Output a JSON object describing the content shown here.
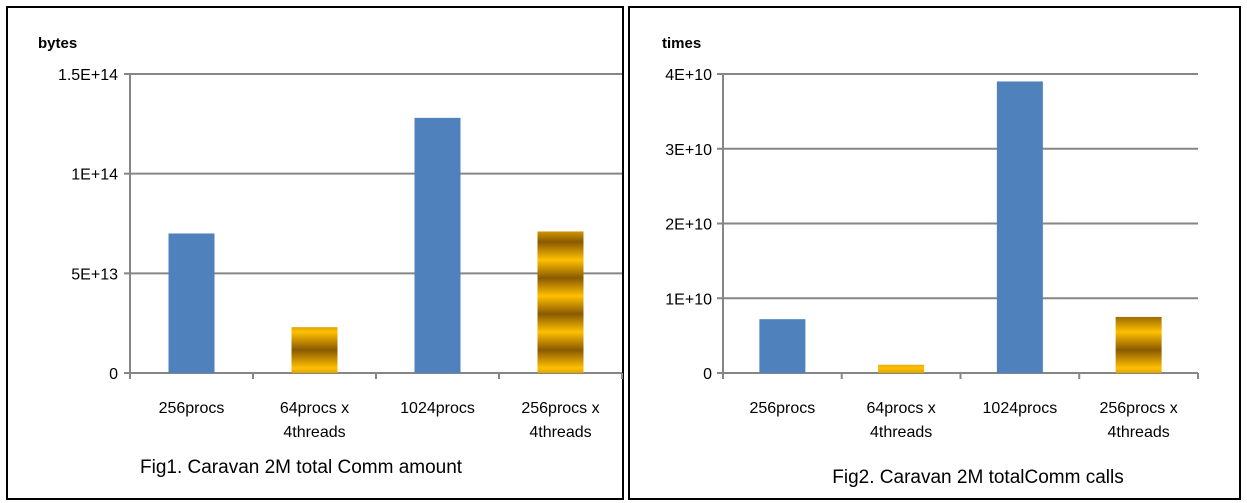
{
  "chart_data": [
    {
      "type": "bar",
      "caption": "Fig1. Caravan 2M total Comm amount",
      "ylabel": "bytes",
      "categories": [
        [
          "256procs"
        ],
        [
          "64procs x",
          "4threads"
        ],
        [
          "1024procs"
        ],
        [
          "256procs x",
          "4threads"
        ]
      ],
      "values": [
        70000000000000,
        23000000000000,
        128000000000000,
        71000000000000
      ],
      "bar_styles": [
        "blue",
        "gold",
        "blue",
        "gold"
      ],
      "yticks": [
        "0",
        "5E+13",
        "1E+14",
        "1.5E+14"
      ],
      "ylim": [
        0,
        150000000000000
      ],
      "grid": true
    },
    {
      "type": "bar",
      "caption": "Fig2. Caravan 2M totalComm calls",
      "ylabel": "times",
      "categories": [
        [
          "256procs"
        ],
        [
          "64procs x",
          "4threads"
        ],
        [
          "1024procs"
        ],
        [
          "256procs x",
          "4threads"
        ]
      ],
      "values": [
        7200000000,
        1100000000,
        39000000000,
        7500000000
      ],
      "bar_styles": [
        "blue",
        "gold",
        "blue",
        "gold"
      ],
      "yticks": [
        "0",
        "1E+10",
        "2E+10",
        "3E+10",
        "4E+10"
      ],
      "ylim": [
        0,
        40000000000
      ],
      "grid": true
    }
  ],
  "colors": {
    "blue": "#4f81bd",
    "gold_light": "#ffc000",
    "gold_dark": "#8a5a00",
    "grid": "#868686"
  }
}
